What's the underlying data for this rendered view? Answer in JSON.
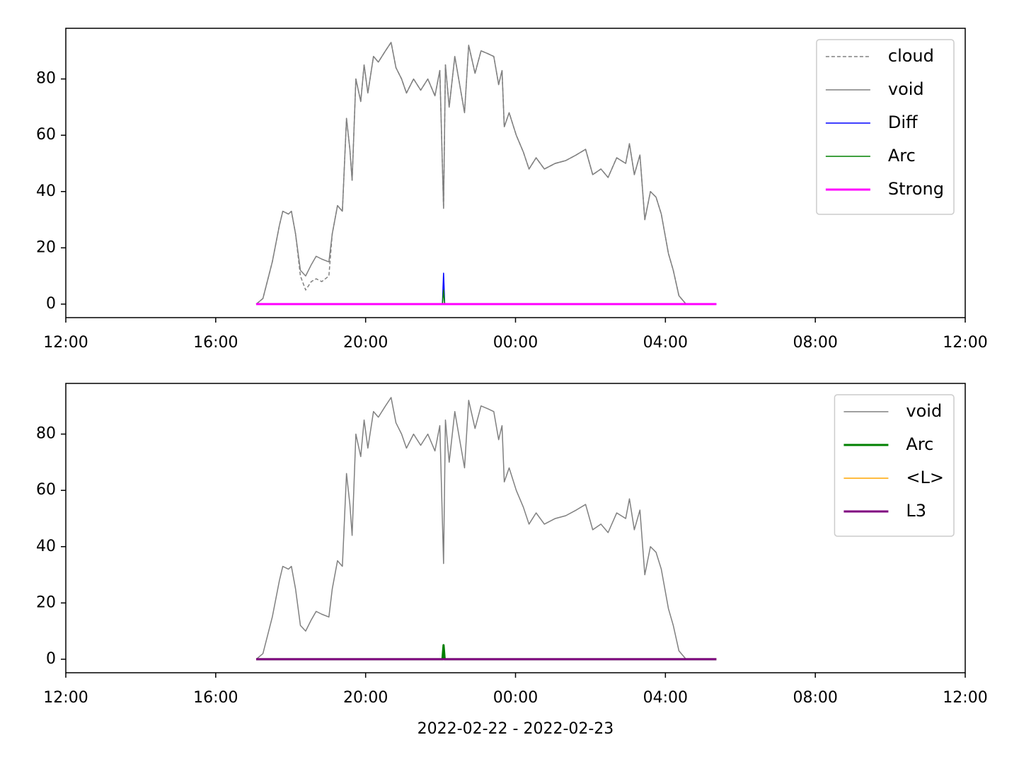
{
  "chart_data": [
    {
      "type": "line",
      "xlim": [
        0,
        24
      ],
      "ylim": [
        -4.8,
        98
      ],
      "xticks": [
        {
          "value": 0,
          "label": "12:00"
        },
        {
          "value": 4,
          "label": "16:00"
        },
        {
          "value": 8,
          "label": "20:00"
        },
        {
          "value": 12,
          "label": "00:00"
        },
        {
          "value": 16,
          "label": "04:00"
        },
        {
          "value": 20,
          "label": "08:00"
        },
        {
          "value": 24,
          "label": "12:00"
        }
      ],
      "yticks": [
        0,
        20,
        40,
        60,
        80
      ],
      "legend": "upper right",
      "series": [
        {
          "name": "cloud",
          "color": "#808080",
          "style": "dashed",
          "linewidth": 1.5,
          "x": [
            5.08,
            5.26,
            5.51,
            5.7,
            5.79,
            5.94,
            6.02,
            6.13,
            6.26,
            6.4,
            6.55,
            6.68,
            6.83,
            7.02,
            7.11,
            7.25,
            7.38,
            7.49,
            7.58,
            7.64,
            7.74,
            7.87,
            7.96,
            8.06,
            8.21,
            8.34,
            8.53,
            8.68,
            8.81,
            8.96,
            9.09,
            9.28,
            9.47,
            9.66,
            9.85,
            9.98,
            10.08,
            10.13,
            10.23,
            10.38,
            10.51,
            10.64,
            10.75,
            10.92,
            11.08,
            11.26,
            11.42,
            11.55,
            11.64,
            11.7,
            11.83,
            12.02,
            12.21,
            12.36,
            12.55,
            12.77,
            13.06,
            13.34,
            13.62,
            13.87,
            14.06,
            14.28,
            14.47,
            14.7,
            14.94,
            15.04,
            15.17,
            15.32,
            15.45,
            15.6,
            15.75,
            15.89,
            16.08,
            16.21,
            16.36,
            16.55
          ],
          "values": [
            0,
            2,
            15,
            28,
            33,
            32,
            33,
            25,
            10,
            5,
            8,
            9,
            8,
            10,
            25,
            35,
            33,
            66,
            55,
            44,
            80,
            72,
            85,
            75,
            88,
            86,
            90,
            93,
            84,
            80,
            75,
            80,
            76,
            80,
            74,
            83,
            34,
            85,
            70,
            88,
            78,
            68,
            92,
            82,
            90,
            89,
            88,
            78,
            83,
            63,
            68,
            60,
            54,
            48,
            52,
            48,
            50,
            51,
            53,
            55,
            46,
            48,
            45,
            52,
            50,
            57,
            46,
            53,
            30,
            40,
            38,
            32,
            18,
            12,
            3,
            0
          ]
        },
        {
          "name": "void",
          "color": "#808080",
          "style": "solid",
          "linewidth": 1.5,
          "x": [
            5.08,
            5.26,
            5.51,
            5.7,
            5.79,
            5.94,
            6.02,
            6.13,
            6.26,
            6.4,
            6.55,
            6.68,
            6.83,
            7.02,
            7.11,
            7.25,
            7.38,
            7.49,
            7.58,
            7.64,
            7.74,
            7.87,
            7.96,
            8.06,
            8.21,
            8.34,
            8.53,
            8.68,
            8.81,
            8.96,
            9.09,
            9.28,
            9.47,
            9.66,
            9.85,
            9.98,
            10.08,
            10.13,
            10.23,
            10.38,
            10.51,
            10.64,
            10.75,
            10.92,
            11.08,
            11.26,
            11.42,
            11.55,
            11.64,
            11.7,
            11.83,
            12.02,
            12.21,
            12.36,
            12.55,
            12.77,
            13.06,
            13.34,
            13.62,
            13.87,
            14.06,
            14.28,
            14.47,
            14.7,
            14.94,
            15.04,
            15.17,
            15.32,
            15.45,
            15.6,
            15.75,
            15.89,
            16.08,
            16.21,
            16.36,
            16.55
          ],
          "values": [
            0,
            2,
            15,
            28,
            33,
            32,
            33,
            25,
            12,
            10,
            14,
            17,
            16,
            15,
            25,
            35,
            33,
            66,
            55,
            44,
            80,
            72,
            85,
            75,
            88,
            86,
            90,
            93,
            84,
            80,
            75,
            80,
            76,
            80,
            74,
            83,
            34,
            85,
            70,
            88,
            78,
            68,
            92,
            82,
            90,
            89,
            88,
            78,
            83,
            63,
            68,
            60,
            54,
            48,
            52,
            48,
            50,
            51,
            53,
            55,
            46,
            48,
            45,
            52,
            50,
            57,
            46,
            53,
            30,
            40,
            38,
            32,
            18,
            12,
            3,
            0
          ]
        },
        {
          "name": "Diff",
          "color": "#0000ff",
          "style": "solid",
          "linewidth": 1.5,
          "x": [
            5.08,
            10.05,
            10.08,
            10.11,
            17.36
          ],
          "values": [
            0,
            0,
            11,
            0,
            0
          ]
        },
        {
          "name": "Arc",
          "color": "#008000",
          "style": "solid",
          "linewidth": 1.5,
          "x": [
            5.08,
            10.05,
            10.08,
            10.11,
            17.36
          ],
          "values": [
            0,
            0,
            5,
            0,
            0
          ]
        },
        {
          "name": "Strong",
          "color": "#ff00ff",
          "style": "solid",
          "linewidth": 3,
          "x": [
            5.08,
            17.36
          ],
          "values": [
            0,
            0
          ]
        }
      ]
    },
    {
      "type": "line",
      "xlabel": "2022-02-22 - 2022-02-23",
      "xlim": [
        0,
        24
      ],
      "ylim": [
        -4.8,
        98
      ],
      "xticks": [
        {
          "value": 0,
          "label": "12:00"
        },
        {
          "value": 4,
          "label": "16:00"
        },
        {
          "value": 8,
          "label": "20:00"
        },
        {
          "value": 12,
          "label": "00:00"
        },
        {
          "value": 16,
          "label": "04:00"
        },
        {
          "value": 20,
          "label": "08:00"
        },
        {
          "value": 24,
          "label": "12:00"
        }
      ],
      "yticks": [
        0,
        20,
        40,
        60,
        80
      ],
      "legend": "upper right",
      "series": [
        {
          "name": "void",
          "color": "#808080",
          "style": "solid",
          "linewidth": 1.5,
          "x": [
            5.08,
            5.26,
            5.51,
            5.7,
            5.79,
            5.94,
            6.02,
            6.13,
            6.26,
            6.4,
            6.55,
            6.68,
            6.83,
            7.02,
            7.11,
            7.25,
            7.38,
            7.49,
            7.58,
            7.64,
            7.74,
            7.87,
            7.96,
            8.06,
            8.21,
            8.34,
            8.53,
            8.68,
            8.81,
            8.96,
            9.09,
            9.28,
            9.47,
            9.66,
            9.85,
            9.98,
            10.08,
            10.13,
            10.23,
            10.38,
            10.51,
            10.64,
            10.75,
            10.92,
            11.08,
            11.26,
            11.42,
            11.55,
            11.64,
            11.7,
            11.83,
            12.02,
            12.21,
            12.36,
            12.55,
            12.77,
            13.06,
            13.34,
            13.62,
            13.87,
            14.06,
            14.28,
            14.47,
            14.7,
            14.94,
            15.04,
            15.17,
            15.32,
            15.45,
            15.6,
            15.75,
            15.89,
            16.08,
            16.21,
            16.36,
            16.55
          ],
          "values": [
            0,
            2,
            15,
            28,
            33,
            32,
            33,
            25,
            12,
            10,
            14,
            17,
            16,
            15,
            25,
            35,
            33,
            66,
            55,
            44,
            80,
            72,
            85,
            75,
            88,
            86,
            90,
            93,
            84,
            80,
            75,
            80,
            76,
            80,
            74,
            83,
            34,
            85,
            70,
            88,
            78,
            68,
            92,
            82,
            90,
            89,
            88,
            78,
            83,
            63,
            68,
            60,
            54,
            48,
            52,
            48,
            50,
            51,
            53,
            55,
            46,
            48,
            45,
            52,
            50,
            57,
            46,
            53,
            30,
            40,
            38,
            32,
            18,
            12,
            3,
            0
          ]
        },
        {
          "name": "Arc",
          "color": "#008000",
          "style": "solid",
          "linewidth": 3,
          "x": [
            5.08,
            10.05,
            10.08,
            10.11,
            17.36
          ],
          "values": [
            0,
            0,
            5,
            0,
            0
          ]
        },
        {
          "name": "<L>",
          "color": "#ffa500",
          "style": "solid",
          "linewidth": 1.5,
          "x": [
            5.08,
            17.36
          ],
          "values": [
            0,
            0
          ]
        },
        {
          "name": "L3",
          "color": "#800080",
          "style": "solid",
          "linewidth": 3,
          "x": [
            5.08,
            17.36
          ],
          "values": [
            0,
            0
          ]
        }
      ]
    }
  ]
}
